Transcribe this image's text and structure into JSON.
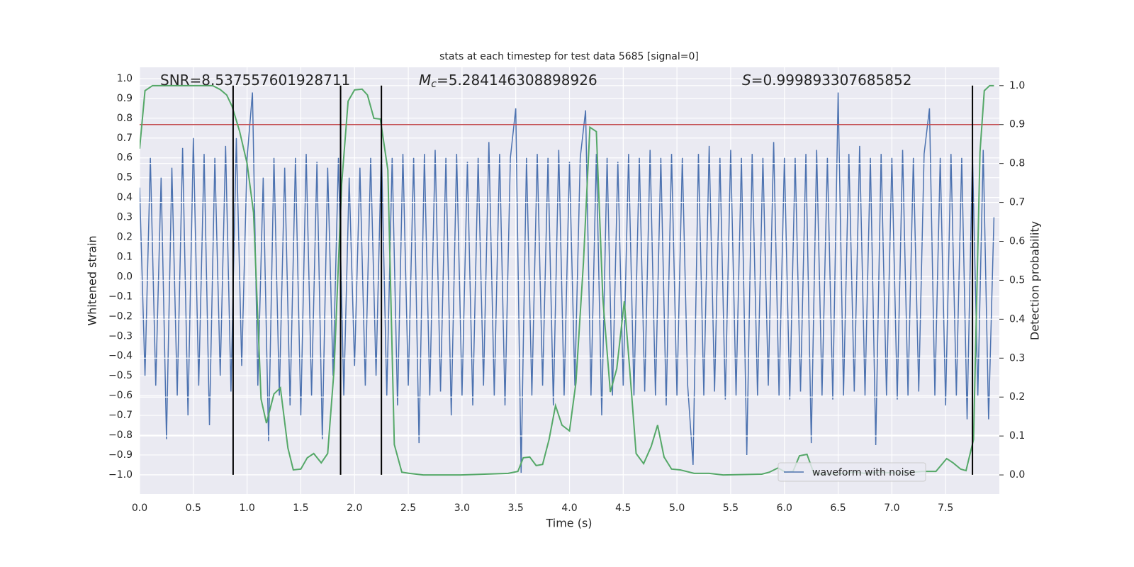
{
  "chart_data": {
    "type": "line",
    "title": "stats at each timestep for test data 5685 [signal=0]",
    "xlabel": "Time (s)",
    "ylabel": "Whitened strain",
    "y2label": "Detection probability",
    "annotations": [
      {
        "text": "SNR=8.537557601928711"
      },
      {
        "symbol": "M",
        "subscript": "c",
        "text": "=5.284146308898926"
      },
      {
        "symbol": "S",
        "text": "=0.999893307685852"
      }
    ],
    "xlim": [
      0,
      8.0
    ],
    "ylim": [
      -1.097,
      1.057
    ],
    "y2lim": [
      -0.049,
      1.047
    ],
    "xticks": [
      {
        "value": 0,
        "label": "0.0"
      },
      {
        "value": 0.5,
        "label": "0.5"
      },
      {
        "value": 1,
        "label": "1.0"
      },
      {
        "value": 1.5,
        "label": "1.5"
      },
      {
        "value": 2,
        "label": "2.0"
      },
      {
        "value": 2.5,
        "label": "2.5"
      },
      {
        "value": 3,
        "label": "3.0"
      },
      {
        "value": 3.5,
        "label": "3.5"
      },
      {
        "value": 4,
        "label": "4.0"
      },
      {
        "value": 4.5,
        "label": "4.5"
      },
      {
        "value": 5,
        "label": "5.0"
      },
      {
        "value": 5.5,
        "label": "5.5"
      },
      {
        "value": 6,
        "label": "6.0"
      },
      {
        "value": 6.5,
        "label": "6.5"
      },
      {
        "value": 7,
        "label": "7.0"
      },
      {
        "value": 7.5,
        "label": "7.5"
      }
    ],
    "yticks": [
      {
        "value": 1,
        "label": "1.0"
      },
      {
        "value": 0.9,
        "label": "0.9"
      },
      {
        "value": 0.8,
        "label": "0.8"
      },
      {
        "value": 0.7,
        "label": "0.7"
      },
      {
        "value": 0.6,
        "label": "0.6"
      },
      {
        "value": 0.5,
        "label": "0.5"
      },
      {
        "value": 0.4,
        "label": "0.4"
      },
      {
        "value": 0.3,
        "label": "0.3"
      },
      {
        "value": 0.2,
        "label": "0.2"
      },
      {
        "value": 0.1,
        "label": "0.1"
      },
      {
        "value": 0,
        "label": "0.0"
      },
      {
        "value": -0.1,
        "label": "−0.1"
      },
      {
        "value": -0.2,
        "label": "−0.2"
      },
      {
        "value": -0.3,
        "label": "−0.3"
      },
      {
        "value": -0.4,
        "label": "−0.4"
      },
      {
        "value": -0.5,
        "label": "−0.5"
      },
      {
        "value": -0.6,
        "label": "−0.6"
      },
      {
        "value": -0.7,
        "label": "−0.7"
      },
      {
        "value": -0.8,
        "label": "−0.8"
      },
      {
        "value": -0.9,
        "label": "−0.9"
      },
      {
        "value": -1,
        "label": "−1.0"
      }
    ],
    "y2ticks": [
      {
        "value": 0,
        "label": "0.0"
      },
      {
        "value": 0.1,
        "label": "0.1"
      },
      {
        "value": 0.2,
        "label": "0.2"
      },
      {
        "value": 0.3,
        "label": "0.3"
      },
      {
        "value": 0.4,
        "label": "0.4"
      },
      {
        "value": 0.5,
        "label": "0.5"
      },
      {
        "value": 0.6,
        "label": "0.6"
      },
      {
        "value": 0.7,
        "label": "0.7"
      },
      {
        "value": 0.8,
        "label": "0.8"
      },
      {
        "value": 0.9,
        "label": "0.9"
      },
      {
        "value": 1,
        "label": "1.0"
      }
    ],
    "grid": true,
    "legend": "lower right",
    "series": [
      {
        "name": "waveform with noise",
        "color": "#4c72b0",
        "x": [
          0,
          0.05,
          0.1,
          0.15,
          0.2,
          0.25,
          0.3,
          0.35,
          0.4,
          0.45,
          0.5,
          0.55,
          0.6,
          0.65,
          0.7,
          0.75,
          0.8,
          0.85,
          0.9,
          0.95,
          1,
          1.05,
          1.1,
          1.15,
          1.2,
          1.25,
          1.3,
          1.35,
          1.4,
          1.45,
          1.5,
          1.55,
          1.6,
          1.65,
          1.7,
          1.75,
          1.8,
          1.85,
          1.9,
          1.95,
          2,
          2.05,
          2.1,
          2.15,
          2.2,
          2.25,
          2.3,
          2.35,
          2.4,
          2.45,
          2.5,
          2.55,
          2.6,
          2.65,
          2.7,
          2.75,
          2.8,
          2.85,
          2.9,
          2.95,
          3,
          3.05,
          3.1,
          3.15,
          3.2,
          3.25,
          3.3,
          3.35,
          3.4,
          3.45,
          3.5,
          3.55,
          3.6,
          3.65,
          3.7,
          3.75,
          3.8,
          3.85,
          3.9,
          3.95,
          4,
          4.05,
          4.1,
          4.15,
          4.2,
          4.25,
          4.3,
          4.35,
          4.4,
          4.45,
          4.5,
          4.55,
          4.6,
          4.65,
          4.7,
          4.75,
          4.8,
          4.85,
          4.9,
          4.95,
          5,
          5.05,
          5.1,
          5.15,
          5.2,
          5.25,
          5.3,
          5.35,
          5.4,
          5.45,
          5.5,
          5.55,
          5.6,
          5.65,
          5.7,
          5.75,
          5.8,
          5.85,
          5.9,
          5.95,
          6,
          6.05,
          6.1,
          6.15,
          6.2,
          6.25,
          6.3,
          6.35,
          6.4,
          6.45,
          6.5,
          6.55,
          6.6,
          6.65,
          6.7,
          6.75,
          6.8,
          6.85,
          6.9,
          6.95,
          7,
          7.05,
          7.1,
          7.15,
          7.2,
          7.25,
          7.3,
          7.35,
          7.4,
          7.45,
          7.5,
          7.55,
          7.6,
          7.65,
          7.7,
          7.75,
          7.8,
          7.85,
          7.9,
          7.95
        ],
        "values": [
          0.45,
          -0.5,
          0.6,
          -0.55,
          0.5,
          -0.82,
          0.55,
          -0.6,
          0.65,
          -0.7,
          0.7,
          -0.55,
          0.62,
          -0.75,
          0.6,
          -0.5,
          0.66,
          -0.58,
          0.7,
          -0.45,
          0.6,
          0.93,
          -0.55,
          0.5,
          -0.83,
          0.6,
          -0.6,
          0.55,
          -0.65,
          0.6,
          -0.7,
          0.62,
          -0.6,
          0.58,
          -0.82,
          0.55,
          -0.5,
          0.6,
          -0.6,
          0.5,
          -0.45,
          0.55,
          -0.55,
          0.6,
          -0.5,
          0.65,
          -0.6,
          0.6,
          -0.65,
          0.62,
          -0.55,
          0.6,
          -0.84,
          0.62,
          -0.6,
          0.64,
          -0.58,
          0.6,
          -0.7,
          0.62,
          -0.6,
          0.58,
          -0.65,
          0.6,
          -0.55,
          0.68,
          -0.6,
          0.62,
          -0.65,
          0.6,
          0.85,
          -0.99,
          0.6,
          -0.6,
          0.62,
          -0.55,
          0.6,
          -0.65,
          0.64,
          -0.6,
          0.58,
          -0.55,
          0.6,
          0.84,
          -0.6,
          0.62,
          -0.7,
          0.6,
          -0.6,
          0.58,
          -0.55,
          0.62,
          -0.6,
          0.6,
          -0.58,
          0.64,
          -0.6,
          0.6,
          -0.65,
          0.62,
          -0.6,
          0.6,
          -0.55,
          -0.95,
          0.62,
          -0.6,
          0.66,
          -0.58,
          0.6,
          -0.62,
          0.64,
          -0.6,
          0.6,
          -0.9,
          0.62,
          -0.6,
          0.6,
          -0.55,
          0.68,
          -0.6,
          0.6,
          -0.62,
          0.6,
          -0.58,
          0.62,
          -0.84,
          0.64,
          -0.6,
          0.6,
          -0.62,
          0.93,
          -0.6,
          0.62,
          -0.58,
          0.66,
          -0.6,
          0.6,
          -0.85,
          0.62,
          -0.6,
          0.6,
          -0.62,
          0.64,
          -0.6,
          0.6,
          -0.58,
          0.62,
          0.85,
          -0.6,
          0.6,
          -0.65,
          0.62,
          -0.6,
          0.6,
          -0.72,
          0.62,
          -0.6,
          0.64,
          -0.72,
          0.3
        ]
      },
      {
        "color": "#55a868",
        "axis": "y2",
        "x": [
          0,
          0.05,
          0.12,
          0.68,
          0.75,
          0.81,
          0.86,
          0.93,
          1.0,
          1.06,
          1.13,
          1.18,
          1.25,
          1.31,
          1.38,
          1.43,
          1.5,
          1.56,
          1.62,
          1.69,
          1.75,
          1.81,
          1.88,
          1.94,
          2.0,
          2.07,
          2.12,
          2.18,
          2.24,
          2.31,
          2.37,
          2.44,
          2.51,
          2.64,
          2.99,
          3.43,
          3.52,
          3.57,
          3.63,
          3.69,
          3.75,
          3.81,
          3.87,
          3.93,
          4.0,
          4.06,
          4.13,
          4.19,
          4.25,
          4.31,
          4.38,
          4.44,
          4.51,
          4.56,
          4.62,
          4.69,
          4.76,
          4.82,
          4.88,
          4.95,
          5.03,
          5.16,
          5.3,
          5.43,
          5.79,
          5.86,
          5.94,
          6.01,
          6.08,
          6.14,
          6.21,
          6.27,
          6.35,
          6.55,
          6.65,
          6.75,
          6.88,
          7.08,
          7.28,
          7.41,
          7.51,
          7.57,
          7.64,
          7.69,
          7.76,
          7.82,
          7.86,
          7.91,
          7.95
        ],
        "values": [
          0.838,
          0.987,
          1.0,
          1.0,
          0.99,
          0.976,
          0.947,
          0.883,
          0.8,
          0.674,
          0.195,
          0.133,
          0.208,
          0.224,
          0.069,
          0.013,
          0.015,
          0.044,
          0.055,
          0.031,
          0.055,
          0.273,
          0.747,
          0.96,
          0.989,
          0.991,
          0.976,
          0.916,
          0.914,
          0.783,
          0.078,
          0.007,
          0.004,
          0,
          0,
          0.004,
          0.009,
          0.044,
          0.046,
          0.024,
          0.027,
          0.091,
          0.178,
          0.128,
          0.113,
          0.237,
          0.546,
          0.893,
          0.882,
          0.455,
          0.213,
          0.273,
          0.446,
          0.273,
          0.055,
          0.029,
          0.073,
          0.128,
          0.046,
          0.015,
          0.013,
          0.004,
          0.004,
          0,
          0.002,
          0.007,
          0.018,
          0.007,
          0.009,
          0.049,
          0.053,
          0.007,
          0.002,
          0.004,
          0.007,
          0.004,
          0.007,
          0.004,
          0.009,
          0.009,
          0.042,
          0.031,
          0.015,
          0.011,
          0.091,
          0.829,
          0.987,
          1.0,
          1.0
        ]
      }
    ],
    "hline": {
      "y": 0.9,
      "axis": "y2",
      "color": "#c44e52"
    },
    "vlines": {
      "x": [
        0.87,
        1.87,
        2.25,
        7.75
      ],
      "ymin": -1.0,
      "ymax": 0.965,
      "color": "#000000"
    }
  }
}
